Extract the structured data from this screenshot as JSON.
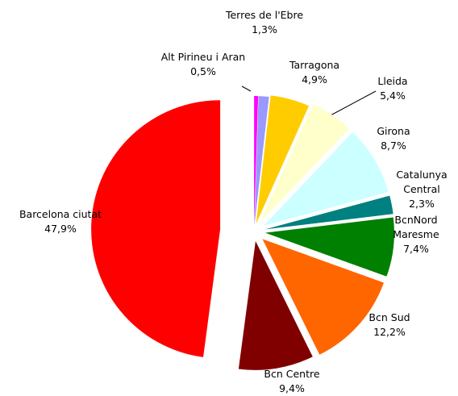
{
  "chart_data": {
    "type": "pie",
    "categories": [
      "Alt Pirineu i Aran",
      "Terres de l'Ebre",
      "Tarragona",
      "Lleida",
      "Girona",
      "Catalunya Central",
      "BcnNord Maresme",
      "Bcn Sud",
      "Bcn Centre",
      "Barcelona ciutat"
    ],
    "values": [
      0.5,
      1.3,
      4.9,
      5.4,
      8.7,
      2.3,
      7.4,
      12.2,
      9.4,
      47.9
    ],
    "value_labels": [
      "0,5%",
      "1,3%",
      "4,9%",
      "5,4%",
      "8,7%",
      "2,3%",
      "7,4%",
      "12,2%",
      "9,4%",
      "47,9%"
    ],
    "colors": [
      "#ff00ff",
      "#9999ff",
      "#ffcc00",
      "#ffffcc",
      "#ccffff",
      "#008080",
      "#008000",
      "#ff6600",
      "#800000",
      "#ff0000"
    ]
  }
}
